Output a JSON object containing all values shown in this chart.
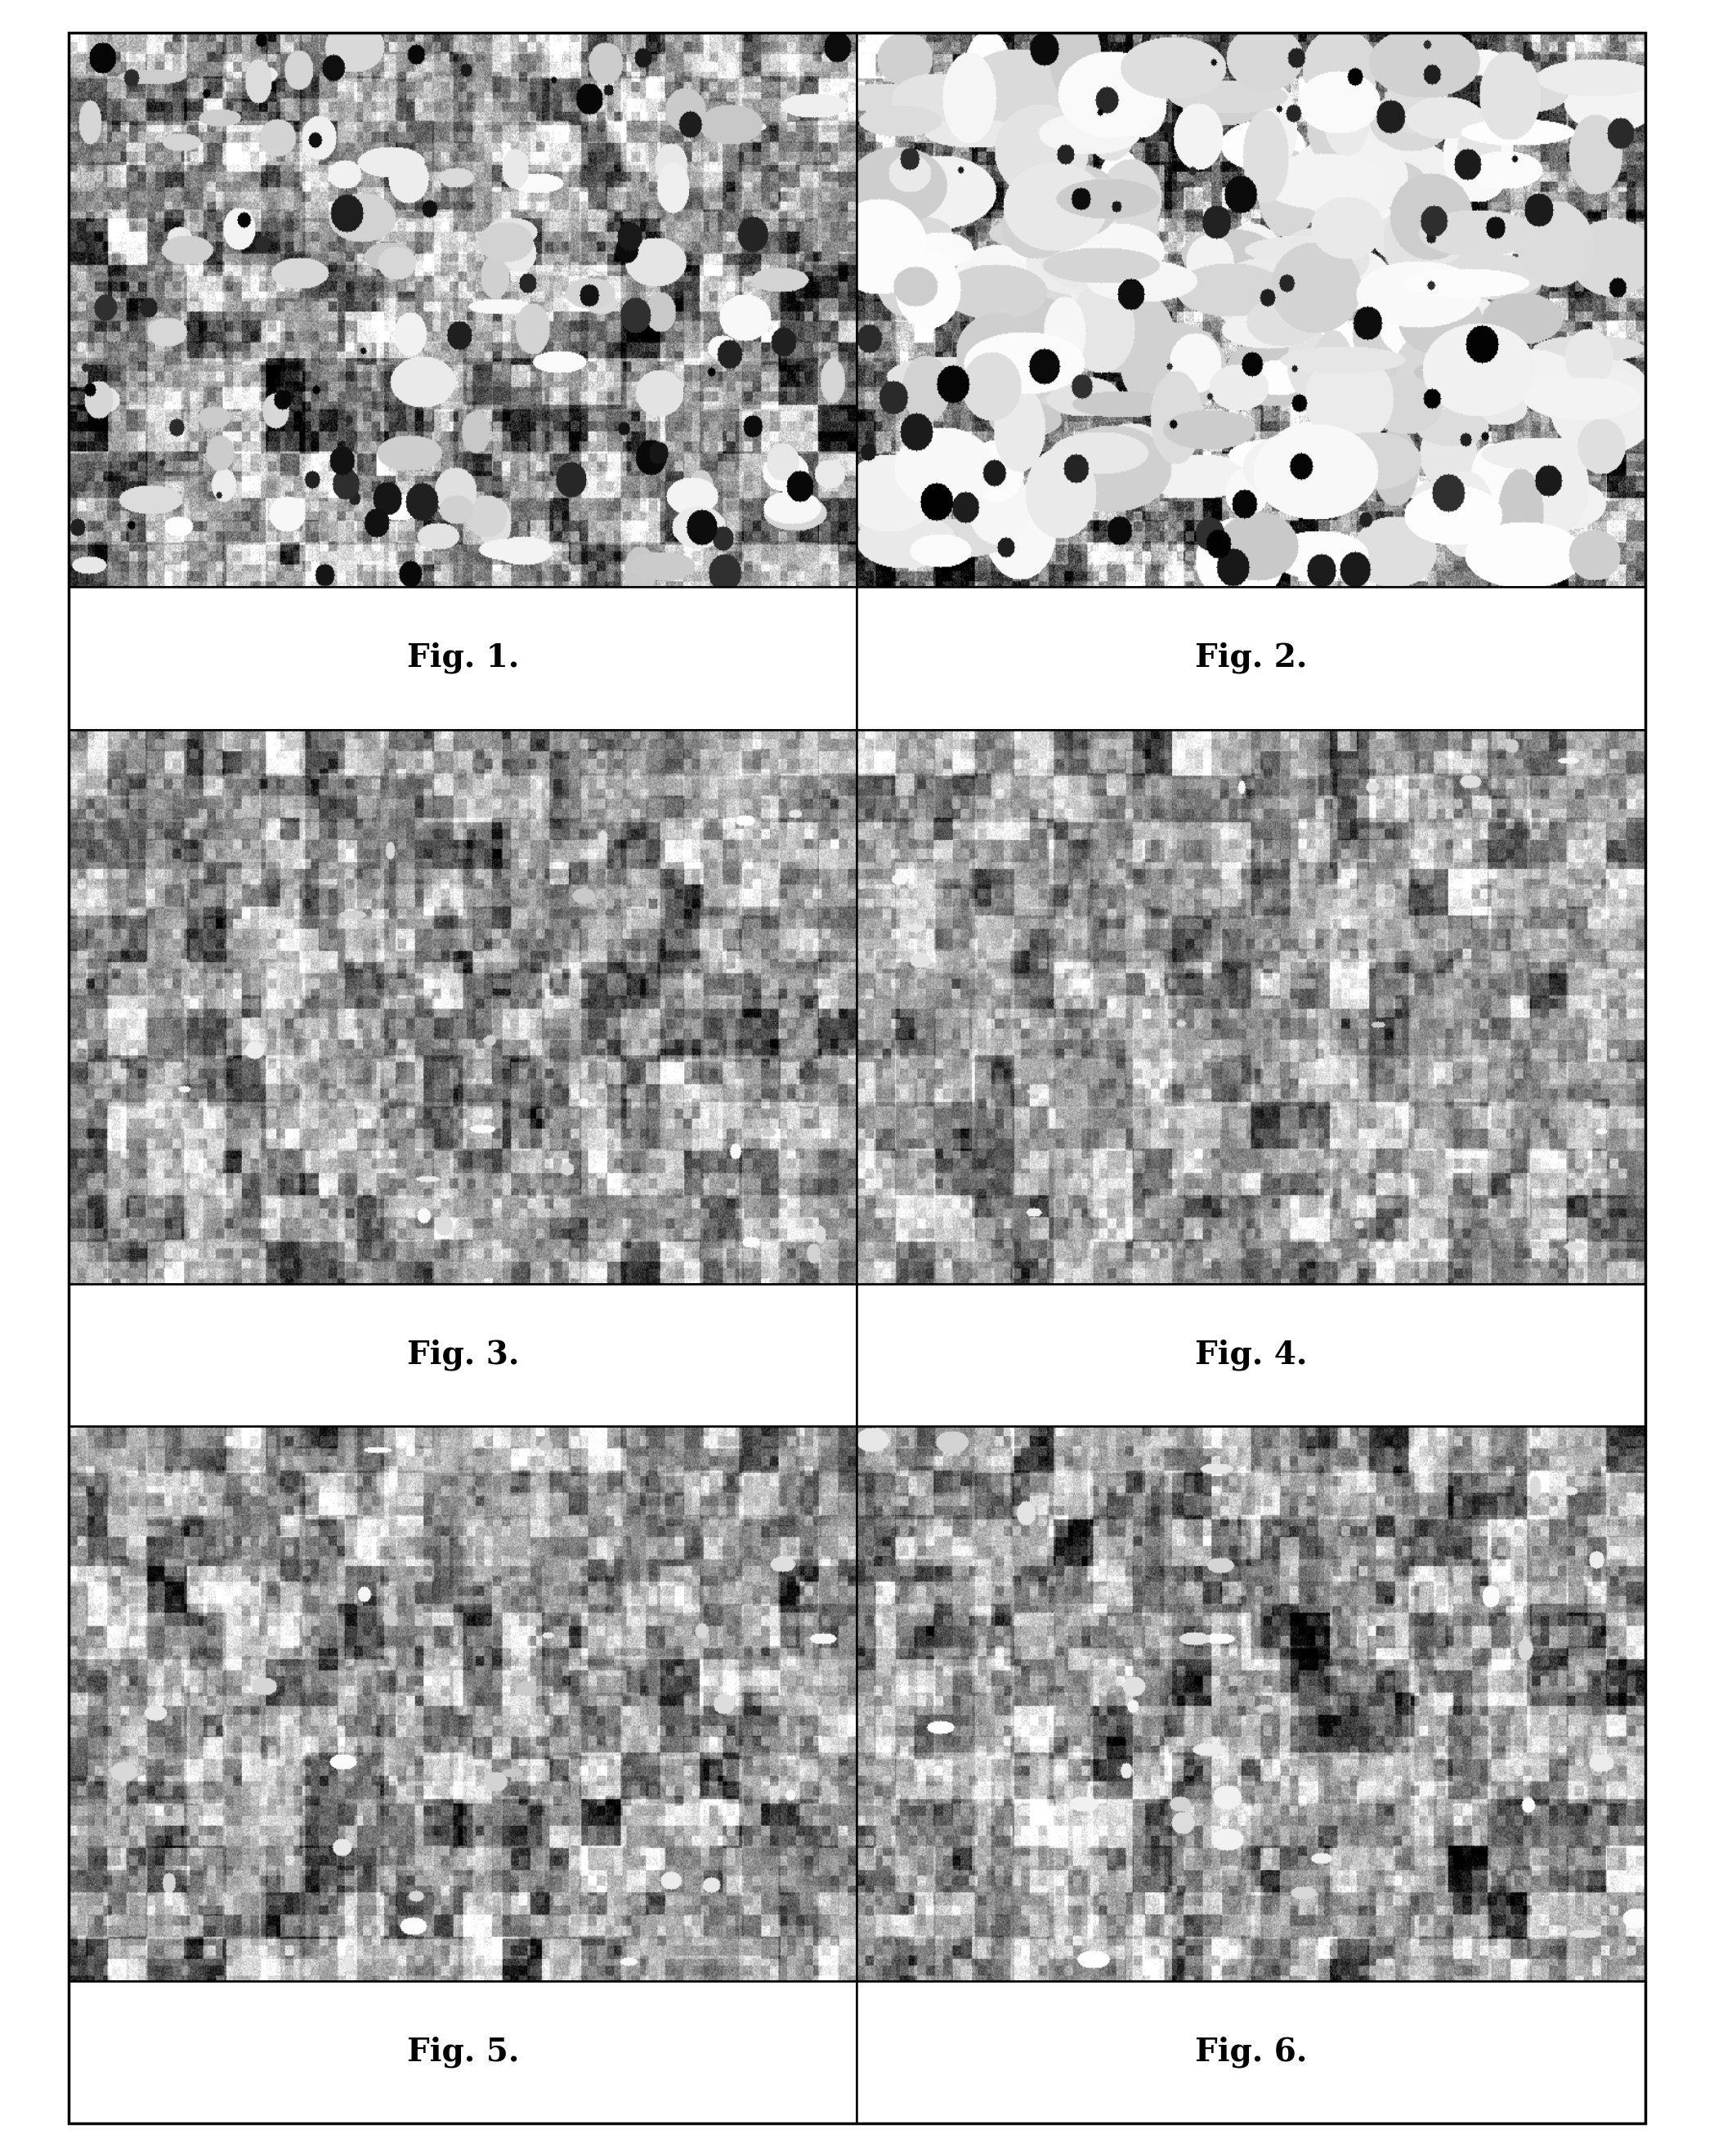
{
  "figure_labels": [
    "Fig. 1.",
    "Fig. 2.",
    "Fig. 3.",
    "Fig. 4.",
    "Fig. 5.",
    "Fig. 6."
  ],
  "background_color": "#ffffff",
  "label_fontsize": 28,
  "label_fontweight": "bold",
  "fig_width": 20.97,
  "fig_height": 26.38,
  "seeds": [
    42,
    123,
    7,
    99,
    55,
    17
  ],
  "noise_params": [
    {
      "base_gray": 148,
      "std": 42,
      "white_blob_count": 80,
      "white_blob_size": 12,
      "dark_regions": true
    },
    {
      "base_gray": 130,
      "std": 50,
      "white_blob_count": 200,
      "white_blob_size": 22,
      "dark_regions": true
    },
    {
      "base_gray": 155,
      "std": 35,
      "white_blob_count": 20,
      "white_blob_size": 5,
      "dark_regions": false
    },
    {
      "base_gray": 158,
      "std": 33,
      "white_blob_count": 15,
      "white_blob_size": 4,
      "dark_regions": false
    },
    {
      "base_gray": 152,
      "std": 36,
      "white_blob_count": 25,
      "white_blob_size": 5,
      "dark_regions": false
    },
    {
      "base_gray": 150,
      "std": 37,
      "white_blob_count": 30,
      "white_blob_size": 6,
      "dark_regions": false
    }
  ]
}
